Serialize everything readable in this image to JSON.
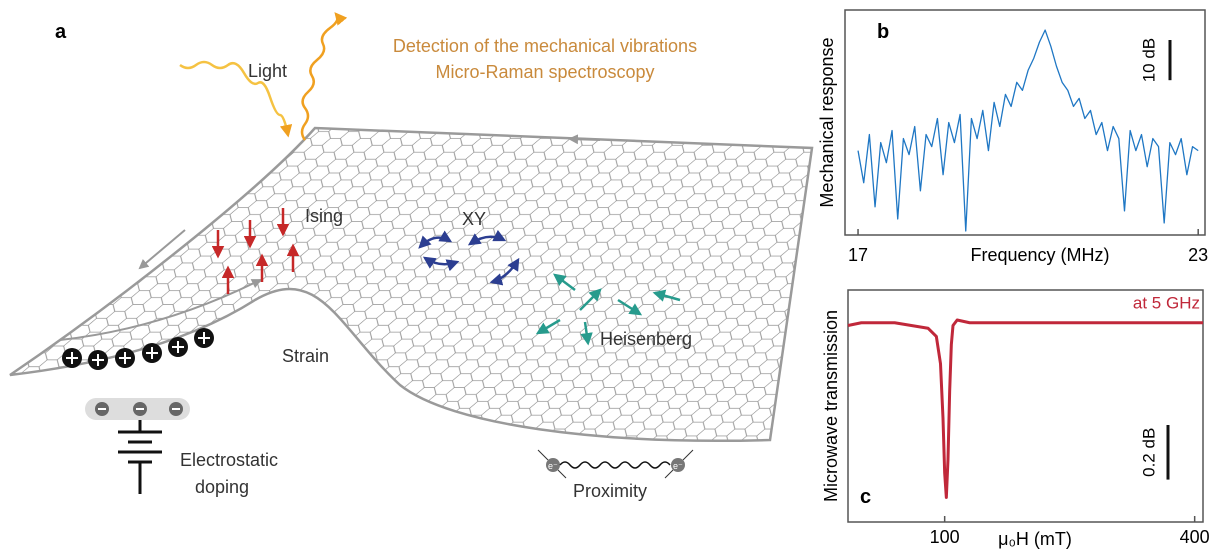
{
  "panel_a": {
    "label": "a",
    "light": "Light",
    "detection": [
      "Detection of the mechanical vibrations",
      "Micro-Raman spectroscopy"
    ],
    "ising": "Ising",
    "xy": "XY",
    "heisenberg": "Heisenberg",
    "strain": "Strain",
    "doping": [
      "Electrostatic",
      "doping"
    ],
    "proximity": "Proximity",
    "electrons": [
      "e⁻",
      "e⁻"
    ]
  },
  "chart_data": [
    {
      "type": "line",
      "panel": "b",
      "ylabel": "Mechanical response",
      "xlabel": "Frequency (MHz)",
      "color": "#1f77c4",
      "xlim": [
        16.77,
        23.12
      ],
      "ylim": [
        -51,
        5
      ],
      "xticks": [
        17,
        23
      ],
      "scale_bar": {
        "value": 10,
        "label": "10 dB"
      },
      "x": [
        17.0,
        17.1,
        17.2,
        17.3,
        17.4,
        17.5,
        17.6,
        17.7,
        17.8,
        17.9,
        18.0,
        18.1,
        18.2,
        18.3,
        18.4,
        18.5,
        18.6,
        18.7,
        18.8,
        18.9,
        19.0,
        19.1,
        19.2,
        19.3,
        19.4,
        19.5,
        19.6,
        19.7,
        19.8,
        19.9,
        20.0,
        20.1,
        20.2,
        20.3,
        20.4,
        20.5,
        20.6,
        20.7,
        20.8,
        20.9,
        21.0,
        21.1,
        21.2,
        21.3,
        21.4,
        21.5,
        21.6,
        21.7,
        21.8,
        21.9,
        22.0,
        22.1,
        22.2,
        22.3,
        22.4,
        22.5,
        22.6,
        22.7,
        22.8,
        22.9,
        23.0
      ],
      "values": [
        -30,
        -38,
        -26,
        -44,
        -28,
        -33,
        -25,
        -47,
        -27,
        -31,
        -24,
        -40,
        -26,
        -29,
        -22,
        -36,
        -23,
        -28,
        -21,
        -50,
        -22,
        -27,
        -20,
        -30,
        -18,
        -24,
        -16,
        -19,
        -13,
        -15,
        -10,
        -7,
        -3,
        0,
        -4,
        -9,
        -13,
        -15,
        -19,
        -17,
        -22,
        -20,
        -26,
        -23,
        -30,
        -24,
        -27,
        -45,
        -25,
        -30,
        -26,
        -34,
        -27,
        -29,
        -48,
        -28,
        -31,
        -27,
        -36,
        -29,
        -30
      ]
    },
    {
      "type": "line",
      "panel": "c",
      "ylabel": "Microwave transmission",
      "xlabel": "μ₀H (mT)",
      "annotation": "at 5 GHz",
      "color": "#c0283a",
      "xlim": [
        -16,
        410
      ],
      "ylim": [
        -0.73,
        0.12
      ],
      "xticks": [
        100,
        400
      ],
      "scale_bar": {
        "value": 0.2,
        "label": "0.2 dB"
      },
      "x": [
        -16,
        0,
        40,
        80,
        90,
        95,
        98,
        100,
        102,
        104,
        106,
        108,
        110,
        115,
        130,
        200,
        300,
        410
      ],
      "values": [
        -0.01,
        0,
        0,
        -0.02,
        -0.05,
        -0.15,
        -0.35,
        -0.55,
        -0.64,
        -0.5,
        -0.25,
        -0.08,
        -0.01,
        0.01,
        0,
        0,
        0,
        0
      ]
    }
  ]
}
